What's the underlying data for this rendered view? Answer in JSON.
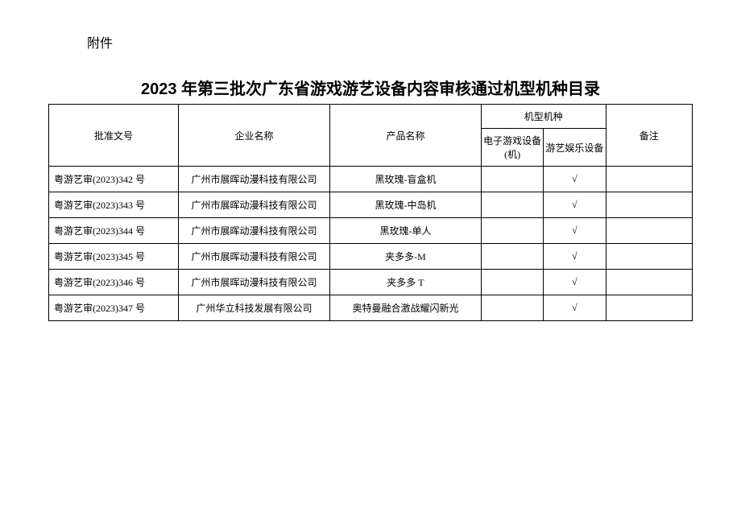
{
  "attachment_label": "附件",
  "title": "2023 年第三批次广东省游戏游艺设备内容审核通过机型机种目录",
  "headers": {
    "approval_no": "批准文号",
    "company": "企业名称",
    "product": "产品名称",
    "machine_type": "机型机种",
    "type_electronic": "电子游戏设备(机)",
    "type_amusement": "游艺娱乐设备",
    "remark": "备注"
  },
  "rows": [
    {
      "approval": "粤游艺审(2023)342 号",
      "company": "广州市展晖动漫科技有限公司",
      "product": "黑玫瑰-盲盒机",
      "electronic": "",
      "amusement": "√",
      "remark": ""
    },
    {
      "approval": "粤游艺审(2023)343 号",
      "company": "广州市展晖动漫科技有限公司",
      "product": "黑玫瑰-中岛机",
      "electronic": "",
      "amusement": "√",
      "remark": ""
    },
    {
      "approval": "粤游艺审(2023)344 号",
      "company": "广州市展晖动漫科技有限公司",
      "product": "黑玫瑰-单人",
      "electronic": "",
      "amusement": "√",
      "remark": ""
    },
    {
      "approval": "粤游艺审(2023)345 号",
      "company": "广州市展晖动漫科技有限公司",
      "product": "夹多多-M",
      "electronic": "",
      "amusement": "√",
      "remark": ""
    },
    {
      "approval": "粤游艺审(2023)346 号",
      "company": "广州市展晖动漫科技有限公司",
      "product": "夹多多 T",
      "electronic": "",
      "amusement": "√",
      "remark": ""
    },
    {
      "approval": "粤游艺审(2023)347 号",
      "company": "广州华立科技发展有限公司",
      "product": "奥特曼融合激战耀闪新光",
      "electronic": "",
      "amusement": "√",
      "remark": ""
    }
  ]
}
